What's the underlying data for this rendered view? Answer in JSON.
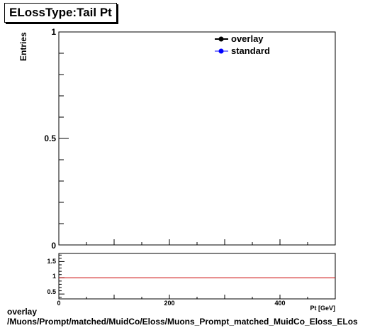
{
  "title": "ELossType:Tail Pt",
  "footer": {
    "line1": "overlay",
    "line2": "/Muons/Prompt/matched/MuidCo/Eloss/Muons_Prompt_matched_MuidCo_Eloss_ELos"
  },
  "chart_data": [
    {
      "type": "line",
      "title": "ELossType:Tail Pt",
      "ylabel": "Entries",
      "xlabel": "Pt [GeV]",
      "xlim": [
        0,
        500
      ],
      "ylim": [
        0,
        1
      ],
      "y_tick_labels": [
        "0",
        "0.5",
        "1"
      ],
      "x_tick_labels": [
        "0",
        "200",
        "400"
      ],
      "legend_position": "top-right",
      "series": [
        {
          "name": "overlay",
          "color": "#000000",
          "x": [],
          "values": []
        },
        {
          "name": "standard",
          "color": "#0000ff",
          "x": [],
          "values": []
        }
      ]
    },
    {
      "type": "line",
      "xlim": [
        0,
        500
      ],
      "ylim": [
        0.35,
        1.75
      ],
      "y_tick_labels": [
        "0.5",
        "1",
        "1.5"
      ],
      "x_tick_labels": [
        "0",
        "200",
        "400"
      ],
      "reference_line": {
        "y": 1,
        "color": "#cc0000"
      }
    }
  ]
}
